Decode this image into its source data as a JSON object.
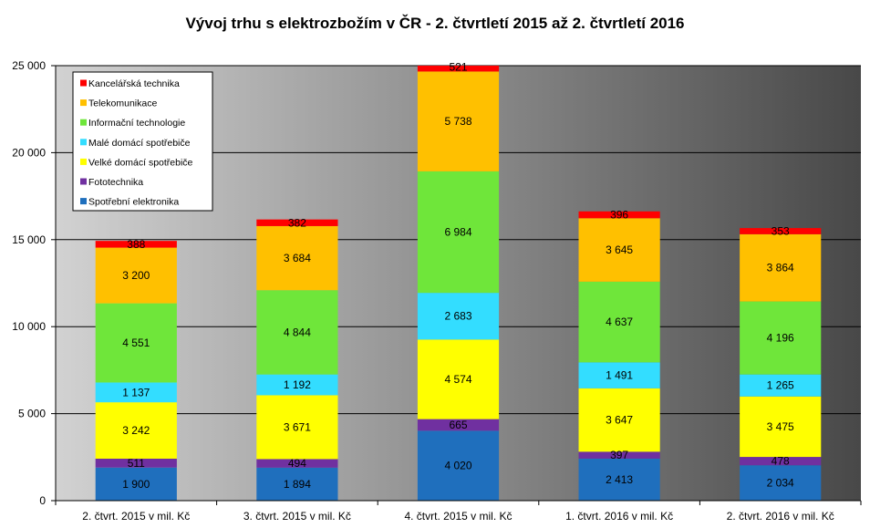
{
  "chart_data": {
    "type": "bar",
    "stacked": true,
    "title": "Vývoj trhu s elektrozbožím v ČR - 2. čtvrtletí 2015 až 2. čtvrtletí 2016",
    "categories": [
      "2. čtvrt. 2015 v mil. Kč",
      "3. čtvrt. 2015 v mil. Kč",
      "4. čtvrt. 2015 v mil. Kč",
      "1. čtvrt. 2016 v mil. Kč",
      "2. čtvrt. 2016 v mil. Kč"
    ],
    "series": [
      {
        "name": "Spotřební elektronika",
        "color": "#1f6fbd",
        "values": [
          1900,
          1894,
          4020,
          2413,
          2034
        ]
      },
      {
        "name": "Fototechnika",
        "color": "#7030a0",
        "values": [
          511,
          494,
          665,
          397,
          478
        ]
      },
      {
        "name": "Velké domácí spotřebiče",
        "color": "#ffff00",
        "values": [
          3242,
          3671,
          4574,
          3647,
          3475
        ]
      },
      {
        "name": "Malé domácí spotřebiče",
        "color": "#33ddff",
        "values": [
          1137,
          1192,
          2683,
          1491,
          1265
        ]
      },
      {
        "name": "Informační technologie",
        "color": "#6fe63a",
        "values": [
          4551,
          4844,
          6984,
          4637,
          4196
        ]
      },
      {
        "name": "Telekomunikace",
        "color": "#ffc000",
        "values": [
          3200,
          3684,
          5738,
          3645,
          3864
        ]
      },
      {
        "name": "Kancelářská technika",
        "color": "#ff0000",
        "values": [
          388,
          382,
          521,
          396,
          353
        ]
      }
    ],
    "ylim": [
      0,
      25000
    ],
    "yticks": [
      0,
      5000,
      10000,
      15000,
      20000,
      25000
    ],
    "grid": true,
    "legend": "top-left",
    "data_labels": true,
    "plot_background": [
      "#d2d2d2",
      "#484848"
    ]
  }
}
